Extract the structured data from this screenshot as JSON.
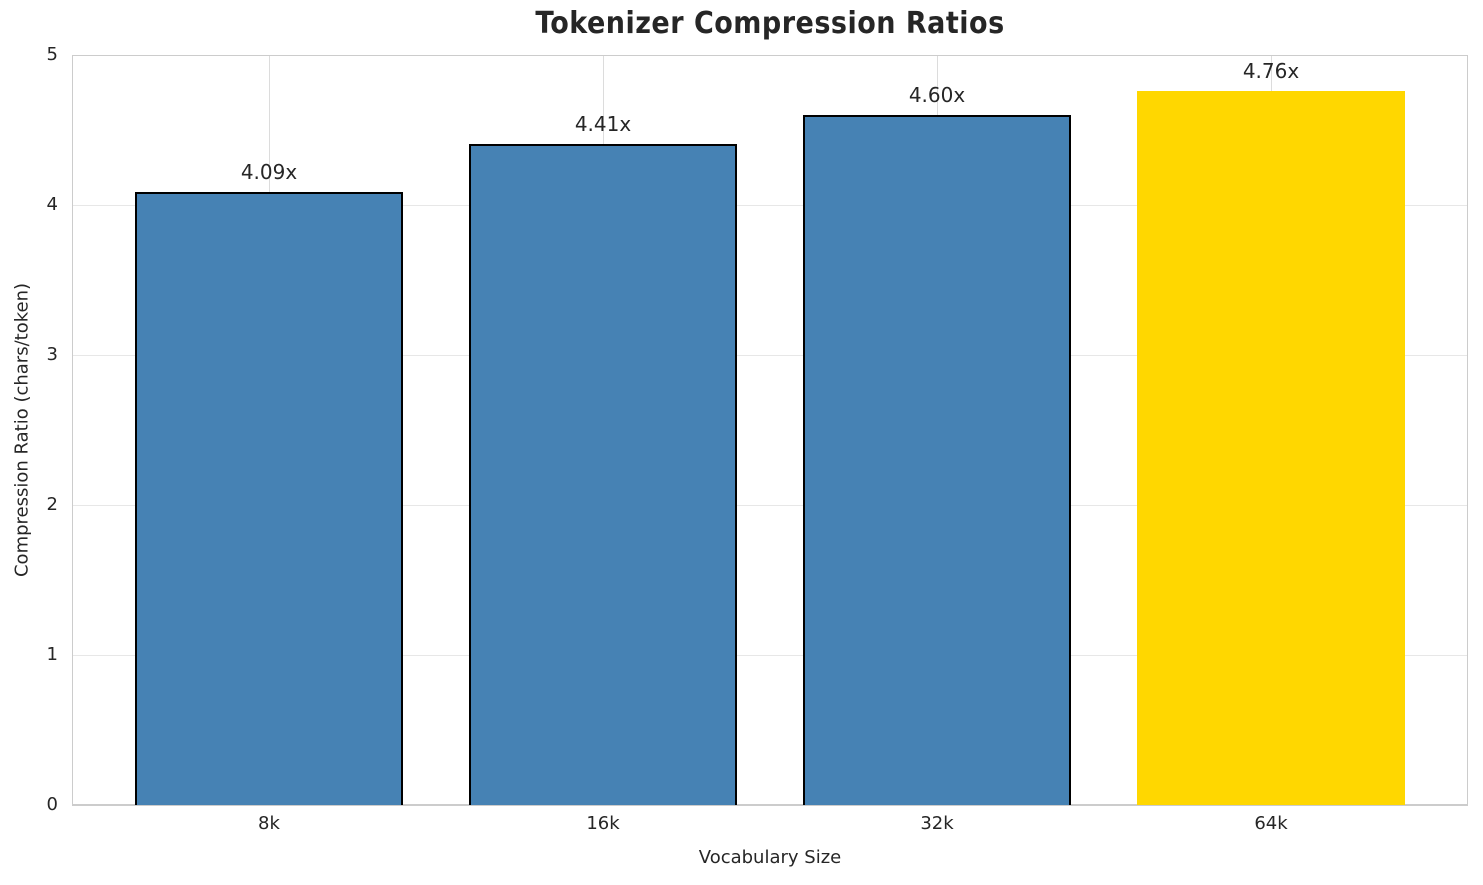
{
  "chart_data": {
    "type": "bar",
    "title": "Tokenizer Compression Ratios",
    "xlabel": "Vocabulary Size",
    "ylabel": "Compression Ratio (chars/token)",
    "categories": [
      "8k",
      "16k",
      "32k",
      "64k"
    ],
    "values": [
      4.09,
      4.41,
      4.6,
      4.76
    ],
    "bar_labels": [
      "4.09x",
      "4.41x",
      "4.60x",
      "4.76x"
    ],
    "bar_colors": [
      "#4682B4",
      "#4682B4",
      "#4682B4",
      "#FFD700"
    ],
    "bar_edge_colors": [
      "#000000",
      "#000000",
      "#000000",
      "none"
    ],
    "ylim": [
      0,
      5
    ],
    "yticks": [
      "0",
      "1",
      "2",
      "3",
      "4",
      "5"
    ],
    "grid": true,
    "legend": "none",
    "colors": {
      "bar": "#4682B4",
      "highlight": "#FFD700",
      "bar_edge": "#000000",
      "grid": "#e0e0e0",
      "spine": "#cccccc",
      "text": "#262626"
    }
  }
}
